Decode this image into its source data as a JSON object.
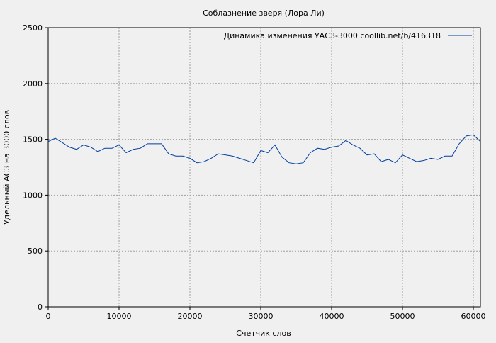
{
  "chart_data": {
    "type": "line",
    "title": "Соблазнение зверя (Лора Ли)",
    "xlabel": "Счетчик слов",
    "ylabel": "Удельный АСЗ на 3000 слов",
    "x": [
      0,
      1000,
      2000,
      3000,
      4000,
      5000,
      6000,
      7000,
      8000,
      9000,
      10000,
      11000,
      12000,
      13000,
      14000,
      15000,
      16000,
      17000,
      18000,
      19000,
      20000,
      21000,
      22000,
      23000,
      24000,
      25000,
      26000,
      27000,
      28000,
      29000,
      30000,
      31000,
      32000,
      33000,
      34000,
      35000,
      36000,
      37000,
      38000,
      39000,
      40000,
      41000,
      42000,
      43000,
      44000,
      45000,
      46000,
      47000,
      48000,
      49000,
      50000,
      51000,
      52000,
      53000,
      54000,
      55000,
      56000,
      57000,
      58000,
      59000,
      60000,
      61000
    ],
    "series": [
      {
        "name": "Динамика изменения УАСЗ-3000  coollib.net/b/416318",
        "color": "#003f9f",
        "values": [
          1480,
          1510,
          1470,
          1430,
          1410,
          1450,
          1430,
          1390,
          1420,
          1420,
          1450,
          1380,
          1410,
          1420,
          1460,
          1460,
          1460,
          1370,
          1350,
          1350,
          1330,
          1290,
          1300,
          1330,
          1370,
          1360,
          1350,
          1330,
          1310,
          1290,
          1400,
          1380,
          1450,
          1340,
          1290,
          1280,
          1290,
          1380,
          1420,
          1410,
          1430,
          1440,
          1490,
          1450,
          1420,
          1360,
          1370,
          1300,
          1320,
          1290,
          1360,
          1330,
          1300,
          1310,
          1330,
          1320,
          1350,
          1350,
          1460,
          1530,
          1540,
          1480
        ]
      }
    ],
    "xlim": [
      0,
      61000
    ],
    "ylim": [
      0,
      2500
    ],
    "xticks": [
      0,
      10000,
      20000,
      30000,
      40000,
      50000,
      60000
    ],
    "yticks": [
      0,
      500,
      1000,
      1500,
      2000,
      2500
    ],
    "grid": true,
    "legend": "top-right"
  }
}
